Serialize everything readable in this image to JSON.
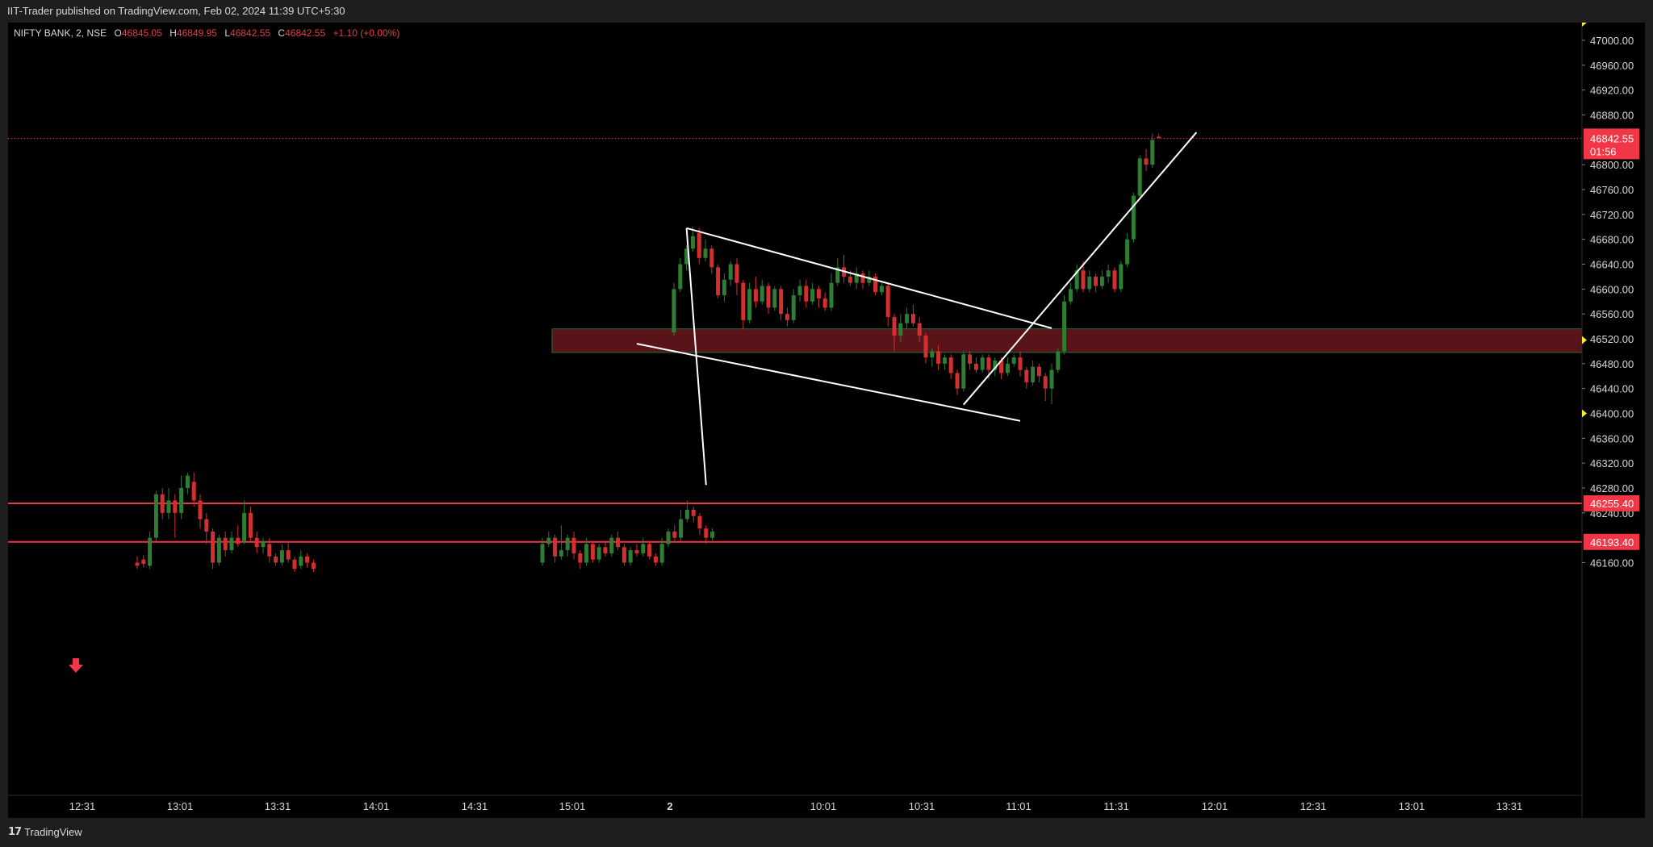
{
  "header": {
    "published_text": "IIT-Trader published on TradingView.com, Feb 02, 2024 11:39 UTC+5:30"
  },
  "symbol": {
    "name": "NIFTY BANK, 2, NSE",
    "open_label": "O",
    "open": "46845.05",
    "high_label": "H",
    "high": "46849.95",
    "low_label": "L",
    "low": "46842.55",
    "close_label": "C",
    "close": "46842.55",
    "change": "+1.10 (+0.00%)"
  },
  "footer": {
    "logo_text": "TradingView",
    "logo_icon": "tradingview-logo-icon"
  },
  "colors": {
    "background": "#000000",
    "up_candle": "#26a69a",
    "up_candle_dark": "#1e5d26",
    "down_candle": "#f23645",
    "level_line": "#f23645",
    "zone_fill": "#7a1c22",
    "zone_border": "#1e6e3a",
    "trendline": "#ffffff",
    "axis_text": "#d7d7d7",
    "marker": "#ffeb3b"
  },
  "chart_data": {
    "type": "candlestick",
    "symbol": "NIFTY BANK",
    "interval": "2",
    "exchange": "NSE",
    "x_ticks": [
      "12:31",
      "13:01",
      "13:31",
      "14:01",
      "14:31",
      "15:01",
      "2",
      "10:01",
      "10:31",
      "11:01",
      "11:31",
      "12:01",
      "12:31",
      "13:01",
      "13:31"
    ],
    "y_ticks": [
      "47000.00",
      "46960.00",
      "46920.00",
      "46880.00",
      "46800.00",
      "46760.00",
      "46720.00",
      "46680.00",
      "46640.00",
      "46600.00",
      "46560.00",
      "46520.00",
      "46480.00",
      "46440.00",
      "46400.00",
      "46360.00",
      "46320.00",
      "46280.00",
      "46240.00",
      "46160.00"
    ],
    "ylim": [
      46150,
      47015
    ],
    "last_price": {
      "label": "46842.55",
      "countdown": "01:56",
      "value": 46842.55
    },
    "horizontal_levels": [
      {
        "label": "46255.40",
        "value": 46255.4
      },
      {
        "label": "46193.40",
        "value": 46193.4
      }
    ],
    "zone": {
      "from": 46498,
      "to": 46536
    },
    "segment1_candles": [
      [
        46160,
        46155,
        46170,
        46150
      ],
      [
        46165,
        46158,
        46172,
        46152
      ],
      [
        46155,
        46200,
        46210,
        46150
      ],
      [
        46200,
        46270,
        46275,
        46195
      ],
      [
        46270,
        46240,
        46280,
        46230
      ],
      [
        46240,
        46260,
        46280,
        46230
      ],
      [
        46260,
        46240,
        46270,
        46200
      ],
      [
        46240,
        46280,
        46300,
        46230
      ],
      [
        46280,
        46300,
        46305,
        46270
      ],
      [
        46290,
        46260,
        46305,
        46250
      ],
      [
        46260,
        46230,
        46270,
        46215
      ],
      [
        46230,
        46210,
        46240,
        46190
      ],
      [
        46210,
        46160,
        46215,
        46150
      ],
      [
        46160,
        46200,
        46205,
        46155
      ],
      [
        46200,
        46180,
        46210,
        46170
      ],
      [
        46180,
        46200,
        46210,
        46175
      ],
      [
        46200,
        46190,
        46220,
        46185
      ],
      [
        46195,
        46240,
        46260,
        46190
      ],
      [
        46240,
        46200,
        46250,
        46195
      ],
      [
        46200,
        46185,
        46210,
        46175
      ],
      [
        46185,
        46195,
        46200,
        46175
      ],
      [
        46190,
        46170,
        46200,
        46160
      ],
      [
        46170,
        46160,
        46175,
        46155
      ],
      [
        46160,
        46180,
        46190,
        46155
      ],
      [
        46180,
        46165,
        46195,
        46160
      ],
      [
        46165,
        46150,
        46170,
        46145
      ],
      [
        46155,
        46170,
        46180,
        46150
      ],
      [
        46170,
        46160,
        46175,
        46152
      ],
      [
        46160,
        46150,
        46165,
        46145
      ]
    ],
    "segment2_candles": [
      [
        46160,
        46190,
        46200,
        46155
      ],
      [
        46190,
        46200,
        46210,
        46185
      ],
      [
        46200,
        46170,
        46205,
        46160
      ],
      [
        46170,
        46180,
        46220,
        46165
      ],
      [
        46180,
        46200,
        46205,
        46170
      ],
      [
        46200,
        46175,
        46210,
        46165
      ],
      [
        46175,
        46160,
        46180,
        46150
      ],
      [
        46160,
        46190,
        46200,
        46155
      ],
      [
        46190,
        46165,
        46195,
        46160
      ],
      [
        46165,
        46185,
        46190,
        46160
      ],
      [
        46185,
        46175,
        46195,
        46170
      ],
      [
        46175,
        46200,
        46205,
        46170
      ],
      [
        46200,
        46185,
        46210,
        46180
      ],
      [
        46185,
        46160,
        46190,
        46155
      ],
      [
        46160,
        46180,
        46185,
        46155
      ],
      [
        46180,
        46175,
        46190,
        46170
      ],
      [
        46175,
        46190,
        46200,
        46170
      ],
      [
        46190,
        46170,
        46195,
        46165
      ],
      [
        46170,
        46160,
        46175,
        46155
      ],
      [
        46160,
        46190,
        46200,
        46155
      ],
      [
        46190,
        46210,
        46215,
        46185
      ],
      [
        46210,
        46200,
        46220,
        46195
      ],
      [
        46200,
        46230,
        46245,
        46195
      ],
      [
        46230,
        46245,
        46260,
        46225
      ],
      [
        46245,
        46235,
        46250,
        46225
      ],
      [
        46235,
        46215,
        46240,
        46205
      ],
      [
        46215,
        46200,
        46220,
        46190
      ],
      [
        46200,
        46210,
        46215,
        46195
      ]
    ],
    "segment3_candles": [
      [
        46530,
        46600,
        46610,
        46525
      ],
      [
        46600,
        46640,
        46650,
        46595
      ],
      [
        46640,
        46665,
        46670,
        46630
      ],
      [
        46665,
        46685,
        46700,
        46660
      ],
      [
        46690,
        46650,
        46698,
        46640
      ],
      [
        46650,
        46665,
        46680,
        46645
      ],
      [
        46665,
        46635,
        46670,
        46625
      ],
      [
        46635,
        46590,
        46640,
        46585
      ],
      [
        46590,
        46615,
        46625,
        46580
      ],
      [
        46615,
        46640,
        46645,
        46605
      ],
      [
        46640,
        46610,
        46650,
        46590
      ],
      [
        46610,
        46550,
        46615,
        46535
      ],
      [
        46550,
        46600,
        46610,
        46545
      ],
      [
        46600,
        46580,
        46620,
        46570
      ],
      [
        46580,
        46605,
        46615,
        46575
      ],
      [
        46605,
        46570,
        46610,
        46560
      ],
      [
        46570,
        46600,
        46605,
        46565
      ],
      [
        46600,
        46560,
        46605,
        46550
      ],
      [
        46560,
        46550,
        46570,
        46540
      ],
      [
        46550,
        46590,
        46600,
        46545
      ],
      [
        46590,
        46605,
        46615,
        46580
      ],
      [
        46605,
        46580,
        46615,
        46570
      ],
      [
        46580,
        46600,
        46610,
        46575
      ],
      [
        46600,
        46585,
        46605,
        46570
      ],
      [
        46585,
        46570,
        46595,
        46565
      ],
      [
        46570,
        46610,
        46625,
        46565
      ],
      [
        46610,
        46635,
        46650,
        46605
      ],
      [
        46635,
        46620,
        46655,
        46610
      ],
      [
        46620,
        46610,
        46630,
        46605
      ],
      [
        46610,
        46625,
        46635,
        46600
      ],
      [
        46625,
        46610,
        46630,
        46600
      ],
      [
        46610,
        46620,
        46630,
        46605
      ],
      [
        46620,
        46595,
        46625,
        46590
      ],
      [
        46595,
        46605,
        46610,
        46590
      ],
      [
        46605,
        46555,
        46610,
        46540
      ],
      [
        46555,
        46525,
        46560,
        46500
      ],
      [
        46525,
        46545,
        46560,
        46515
      ],
      [
        46545,
        46560,
        46570,
        46535
      ],
      [
        46560,
        46545,
        46575,
        46540
      ],
      [
        46545,
        46525,
        46555,
        46515
      ],
      [
        46525,
        46490,
        46530,
        46480
      ],
      [
        46490,
        46500,
        46505,
        46475
      ],
      [
        46500,
        46480,
        46510,
        46470
      ],
      [
        46480,
        46490,
        46495,
        46470
      ],
      [
        46490,
        46465,
        46495,
        46455
      ],
      [
        46465,
        46440,
        46470,
        46430
      ],
      [
        46440,
        46495,
        46500,
        46435
      ],
      [
        46495,
        46480,
        46500,
        46470
      ],
      [
        46480,
        46470,
        46490,
        46465
      ],
      [
        46470,
        46490,
        46495,
        46465
      ],
      [
        46490,
        46470,
        46495,
        46455
      ],
      [
        46470,
        46485,
        46490,
        46460
      ],
      [
        46485,
        46465,
        46490,
        46455
      ],
      [
        46465,
        46480,
        46490,
        46460
      ],
      [
        46480,
        46490,
        46495,
        46475
      ],
      [
        46490,
        46470,
        46500,
        46460
      ],
      [
        46470,
        46450,
        46475,
        46440
      ],
      [
        46450,
        46475,
        46485,
        46445
      ],
      [
        46475,
        46460,
        46480,
        46450
      ],
      [
        46460,
        46440,
        46465,
        46420
      ],
      [
        46440,
        46470,
        46480,
        46415
      ],
      [
        46470,
        46500,
        46505,
        46465
      ],
      [
        46500,
        46580,
        46590,
        46495
      ],
      [
        46580,
        46600,
        46610,
        46575
      ],
      [
        46600,
        46630,
        46640,
        46595
      ],
      [
        46630,
        46600,
        46645,
        46595
      ],
      [
        46600,
        46620,
        46630,
        46595
      ],
      [
        46620,
        46605,
        46625,
        46595
      ],
      [
        46605,
        46620,
        46630,
        46600
      ],
      [
        46620,
        46630,
        46640,
        46610
      ],
      [
        46630,
        46600,
        46635,
        46595
      ],
      [
        46600,
        46640,
        46645,
        46595
      ],
      [
        46640,
        46680,
        46690,
        46635
      ],
      [
        46680,
        46750,
        46755,
        46675
      ],
      [
        46750,
        46810,
        46815,
        46745
      ],
      [
        46810,
        46800,
        46825,
        46790
      ],
      [
        46800,
        46840,
        46850,
        46795
      ],
      [
        46845,
        46842.55,
        46849.95,
        46842.55
      ]
    ],
    "trendlines": [
      {
        "from": {
          "segment": 2,
          "index": 26,
          "price": 46285
        },
        "to": {
          "segment": 3,
          "index": 2,
          "price": 46698
        }
      },
      {
        "from": {
          "segment": 3,
          "index": 2,
          "price": 46698
        },
        "to": {
          "segment": 3,
          "index": 60,
          "price": 46537
        }
      },
      {
        "from": {
          "segment": 2,
          "index": 15,
          "price": 46512
        },
        "to": {
          "segment": 3,
          "index": 55,
          "price": 46388
        }
      },
      {
        "from": {
          "segment": 3,
          "index": 46,
          "price": 46414
        },
        "to": {
          "segment": 3,
          "index": 83,
          "price": 46852
        }
      }
    ]
  }
}
